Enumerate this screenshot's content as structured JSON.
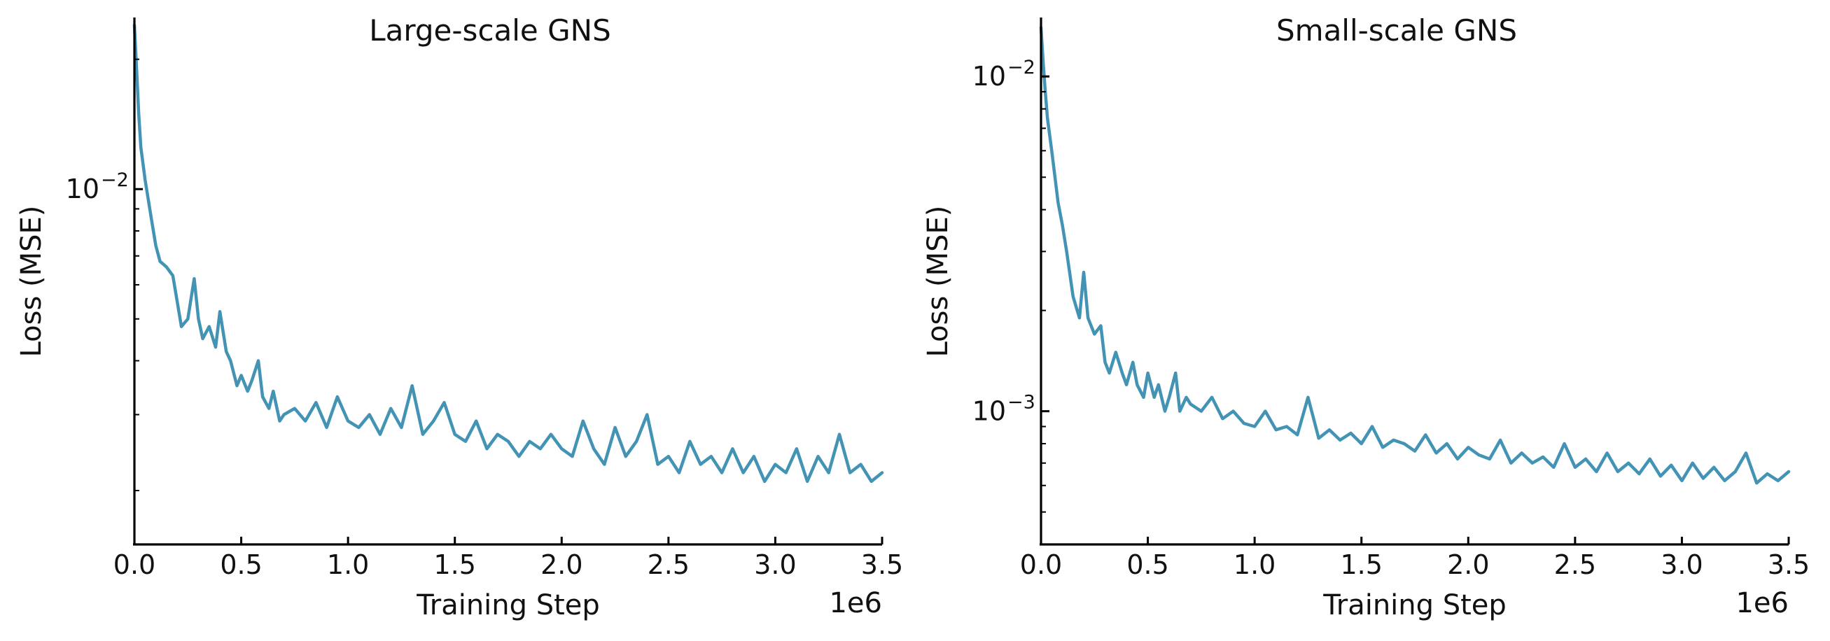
{
  "chart_data": [
    {
      "type": "line",
      "title": "Large-scale GNS",
      "xlabel": "Training Step",
      "ylabel": "Loss (MSE)",
      "x_scale_label": "1e6",
      "xlim": [
        0,
        3.5
      ],
      "x_ticks": [
        0.0,
        0.5,
        1.0,
        1.5,
        2.0,
        2.5,
        3.0,
        3.5
      ],
      "x_tick_labels": [
        "0.0",
        "0.5",
        "1.0",
        "1.5",
        "2.0",
        "2.5",
        "3.0",
        "3.5"
      ],
      "y_scale": "log",
      "ylim": [
        0.0015,
        0.025
      ],
      "y_major_ticks": [
        {
          "value": 0.01,
          "base": "10",
          "exp": "−2"
        }
      ],
      "y_minor_ticks": [
        0.002,
        0.003,
        0.004,
        0.005,
        0.006,
        0.007,
        0.008,
        0.009,
        0.02
      ],
      "grid": false,
      "color": "#4393b5",
      "series": [
        {
          "x": [
            0.0,
            0.01,
            0.02,
            0.03,
            0.05,
            0.08,
            0.1,
            0.12,
            0.15,
            0.18,
            0.2,
            0.22,
            0.25,
            0.28,
            0.3,
            0.32,
            0.35,
            0.38,
            0.4,
            0.43,
            0.45,
            0.48,
            0.5,
            0.53,
            0.55,
            0.58,
            0.6,
            0.63,
            0.65,
            0.68,
            0.7,
            0.75,
            0.8,
            0.85,
            0.9,
            0.95,
            1.0,
            1.05,
            1.1,
            1.15,
            1.2,
            1.25,
            1.3,
            1.35,
            1.4,
            1.45,
            1.5,
            1.55,
            1.6,
            1.65,
            1.7,
            1.75,
            1.8,
            1.85,
            1.9,
            1.95,
            2.0,
            2.05,
            2.1,
            2.15,
            2.2,
            2.25,
            2.3,
            2.35,
            2.4,
            2.45,
            2.5,
            2.55,
            2.6,
            2.65,
            2.7,
            2.75,
            2.8,
            2.85,
            2.9,
            2.95,
            3.0,
            3.05,
            3.1,
            3.15,
            3.2,
            3.25,
            3.3,
            3.35,
            3.4,
            3.45,
            3.5
          ],
          "values": [
            0.024,
            0.019,
            0.015,
            0.0125,
            0.0105,
            0.0085,
            0.0074,
            0.0068,
            0.0066,
            0.0063,
            0.0055,
            0.0048,
            0.005,
            0.0062,
            0.005,
            0.0045,
            0.0048,
            0.0043,
            0.0052,
            0.0042,
            0.004,
            0.0035,
            0.0037,
            0.0034,
            0.0036,
            0.004,
            0.0033,
            0.0031,
            0.0034,
            0.0029,
            0.003,
            0.0031,
            0.0029,
            0.0032,
            0.0028,
            0.0033,
            0.0029,
            0.0028,
            0.003,
            0.0027,
            0.0031,
            0.0028,
            0.0035,
            0.0027,
            0.0029,
            0.0032,
            0.0027,
            0.0026,
            0.0029,
            0.0025,
            0.0027,
            0.0026,
            0.0024,
            0.0026,
            0.0025,
            0.0027,
            0.0025,
            0.0024,
            0.0029,
            0.0025,
            0.0023,
            0.0028,
            0.0024,
            0.0026,
            0.003,
            0.0023,
            0.0024,
            0.0022,
            0.0026,
            0.0023,
            0.0024,
            0.0022,
            0.0025,
            0.0022,
            0.0024,
            0.0021,
            0.0023,
            0.0022,
            0.0025,
            0.0021,
            0.0024,
            0.0022,
            0.0027,
            0.0022,
            0.0023,
            0.0021,
            0.0022
          ]
        }
      ]
    },
    {
      "type": "line",
      "title": "Small-scale GNS",
      "xlabel": "Training Step",
      "ylabel": "Loss (MSE)",
      "x_scale_label": "1e6",
      "xlim": [
        0,
        3.5
      ],
      "x_ticks": [
        0.0,
        0.5,
        1.0,
        1.5,
        2.0,
        2.5,
        3.0,
        3.5
      ],
      "x_tick_labels": [
        "0.0",
        "0.5",
        "1.0",
        "1.5",
        "2.0",
        "2.5",
        "3.0",
        "3.5"
      ],
      "y_scale": "log",
      "ylim": [
        0.0004,
        0.015
      ],
      "y_major_ticks": [
        {
          "value": 0.001,
          "base": "10",
          "exp": "−3"
        },
        {
          "value": 0.01,
          "base": "10",
          "exp": "−2"
        }
      ],
      "y_minor_ticks": [
        0.0005,
        0.0006,
        0.0007,
        0.0008,
        0.0009,
        0.002,
        0.003,
        0.004,
        0.005,
        0.006,
        0.007,
        0.008,
        0.009
      ],
      "grid": false,
      "color": "#4393b5",
      "series": [
        {
          "x": [
            0.0,
            0.01,
            0.02,
            0.03,
            0.05,
            0.08,
            0.1,
            0.12,
            0.15,
            0.18,
            0.2,
            0.22,
            0.25,
            0.28,
            0.3,
            0.32,
            0.35,
            0.38,
            0.4,
            0.43,
            0.45,
            0.48,
            0.5,
            0.53,
            0.55,
            0.58,
            0.6,
            0.63,
            0.65,
            0.68,
            0.7,
            0.75,
            0.8,
            0.85,
            0.9,
            0.95,
            1.0,
            1.05,
            1.1,
            1.15,
            1.2,
            1.25,
            1.3,
            1.35,
            1.4,
            1.45,
            1.5,
            1.55,
            1.6,
            1.65,
            1.7,
            1.75,
            1.8,
            1.85,
            1.9,
            1.95,
            2.0,
            2.05,
            2.1,
            2.15,
            2.2,
            2.25,
            2.3,
            2.35,
            2.4,
            2.45,
            2.5,
            2.55,
            2.6,
            2.65,
            2.7,
            2.75,
            2.8,
            2.85,
            2.9,
            2.95,
            3.0,
            3.05,
            3.1,
            3.15,
            3.2,
            3.25,
            3.3,
            3.35,
            3.4,
            3.45,
            3.5
          ],
          "values": [
            0.014,
            0.011,
            0.009,
            0.0075,
            0.006,
            0.0042,
            0.0036,
            0.003,
            0.0022,
            0.0019,
            0.0026,
            0.0019,
            0.0017,
            0.0018,
            0.0014,
            0.0013,
            0.0015,
            0.0013,
            0.0012,
            0.0014,
            0.0012,
            0.0011,
            0.0013,
            0.0011,
            0.0012,
            0.001,
            0.0011,
            0.0013,
            0.001,
            0.0011,
            0.00105,
            0.001,
            0.0011,
            0.00095,
            0.001,
            0.00092,
            0.0009,
            0.001,
            0.00088,
            0.0009,
            0.00085,
            0.0011,
            0.00083,
            0.00088,
            0.00082,
            0.00086,
            0.0008,
            0.0009,
            0.00078,
            0.00082,
            0.0008,
            0.00076,
            0.00085,
            0.00075,
            0.0008,
            0.00072,
            0.00078,
            0.00074,
            0.00072,
            0.00082,
            0.0007,
            0.00075,
            0.0007,
            0.00073,
            0.00068,
            0.0008,
            0.00068,
            0.00072,
            0.00066,
            0.00075,
            0.00066,
            0.0007,
            0.00065,
            0.00072,
            0.00064,
            0.00069,
            0.00062,
            0.0007,
            0.00063,
            0.00068,
            0.00062,
            0.00066,
            0.00075,
            0.00061,
            0.00065,
            0.00062,
            0.00066
          ]
        }
      ]
    }
  ]
}
